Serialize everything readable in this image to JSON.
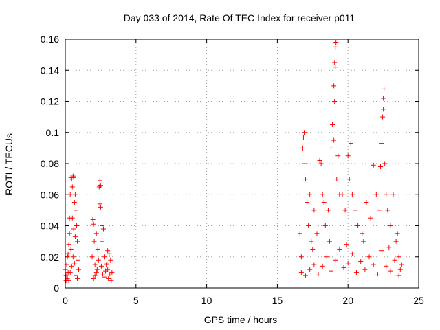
{
  "chart_data": {
    "type": "scatter",
    "title": "Day 033 of 2014, Rate Of TEC Index for receiver p011",
    "xlabel": "GPS time / hours",
    "ylabel": "ROTI / TECUs",
    "xlim": [
      0,
      25
    ],
    "ylim": [
      0,
      0.16
    ],
    "xticks": [
      0,
      5,
      10,
      15,
      20,
      25
    ],
    "xtick_labels": [
      "0",
      "5",
      "10",
      "15",
      "20",
      "25"
    ],
    "yticks": [
      0,
      0.02,
      0.04,
      0.06,
      0.08,
      0.1,
      0.12,
      0.14,
      0.16
    ],
    "ytick_labels": [
      "0",
      "0.02",
      "0.04",
      "0.06",
      "0.08",
      "0.1",
      "0.12",
      "0.14",
      "0.16"
    ],
    "grid": true,
    "marker": "+",
    "marker_color": "#ff0000",
    "series": [
      {
        "points": [
          [
            0.0,
            0.012
          ],
          [
            0.05,
            0.008
          ],
          [
            0.1,
            0.015
          ],
          [
            0.15,
            0.02
          ],
          [
            0.2,
            0.01
          ],
          [
            0.25,
            0.028
          ],
          [
            0.3,
            0.045
          ],
          [
            0.35,
            0.06
          ],
          [
            0.4,
            0.071
          ],
          [
            0.45,
            0.07
          ],
          [
            0.5,
            0.065
          ],
          [
            0.55,
            0.072
          ],
          [
            0.6,
            0.071
          ],
          [
            0.65,
            0.055
          ],
          [
            0.7,
            0.06
          ],
          [
            0.75,
            0.05
          ],
          [
            0.8,
            0.04
          ],
          [
            0.85,
            0.03
          ],
          [
            0.9,
            0.018
          ],
          [
            0.95,
            0.012
          ],
          [
            0.05,
            0.005
          ],
          [
            0.15,
            0.006
          ],
          [
            0.25,
            0.005
          ],
          [
            0.35,
            0.01
          ],
          [
            0.45,
            0.014
          ],
          [
            0.55,
            0.02
          ],
          [
            0.65,
            0.016
          ],
          [
            0.75,
            0.008
          ],
          [
            0.85,
            0.006
          ],
          [
            0.3,
            0.035
          ],
          [
            0.5,
            0.045
          ],
          [
            0.7,
            0.033
          ],
          [
            0.4,
            0.025
          ],
          [
            0.6,
            0.038
          ],
          [
            0.2,
            0.022
          ],
          [
            1.9,
            0.02
          ],
          [
            1.95,
            0.044
          ],
          [
            2.0,
            0.041
          ],
          [
            2.05,
            0.03
          ],
          [
            2.1,
            0.015
          ],
          [
            2.2,
            0.01
          ],
          [
            2.3,
            0.025
          ],
          [
            2.4,
            0.065
          ],
          [
            2.45,
            0.069
          ],
          [
            2.5,
            0.066
          ],
          [
            2.45,
            0.054
          ],
          [
            2.5,
            0.052
          ],
          [
            2.6,
            0.03
          ],
          [
            2.7,
            0.038
          ],
          [
            2.8,
            0.02
          ],
          [
            2.9,
            0.015
          ],
          [
            3.0,
            0.012
          ],
          [
            3.1,
            0.022
          ],
          [
            3.2,
            0.018
          ],
          [
            3.3,
            0.01
          ],
          [
            2.0,
            0.006
          ],
          [
            2.1,
            0.008
          ],
          [
            2.25,
            0.012
          ],
          [
            2.35,
            0.018
          ],
          [
            2.55,
            0.014
          ],
          [
            2.65,
            0.009
          ],
          [
            2.75,
            0.007
          ],
          [
            2.85,
            0.011
          ],
          [
            2.95,
            0.016
          ],
          [
            3.05,
            0.006
          ],
          [
            3.15,
            0.009
          ],
          [
            3.25,
            0.005
          ],
          [
            2.2,
            0.035
          ],
          [
            2.6,
            0.04
          ],
          [
            3.0,
            0.024
          ],
          [
            16.6,
            0.035
          ],
          [
            16.7,
            0.02
          ],
          [
            16.8,
            0.09
          ],
          [
            16.85,
            0.097
          ],
          [
            16.9,
            0.1
          ],
          [
            16.95,
            0.08
          ],
          [
            17.0,
            0.07
          ],
          [
            17.1,
            0.055
          ],
          [
            17.2,
            0.04
          ],
          [
            17.3,
            0.06
          ],
          [
            17.4,
            0.03
          ],
          [
            17.6,
            0.05
          ],
          [
            17.8,
            0.035
          ],
          [
            18.0,
            0.082
          ],
          [
            18.1,
            0.08
          ],
          [
            18.2,
            0.06
          ],
          [
            18.3,
            0.055
          ],
          [
            18.4,
            0.04
          ],
          [
            18.6,
            0.05
          ],
          [
            18.8,
            0.09
          ],
          [
            18.9,
            0.105
          ],
          [
            19.0,
            0.13
          ],
          [
            19.05,
            0.145
          ],
          [
            19.1,
            0.155
          ],
          [
            19.15,
            0.158
          ],
          [
            19.1,
            0.142
          ],
          [
            19.05,
            0.12
          ],
          [
            19.0,
            0.095
          ],
          [
            19.2,
            0.07
          ],
          [
            19.3,
            0.085
          ],
          [
            19.4,
            0.06
          ],
          [
            19.6,
            0.06
          ],
          [
            19.8,
            0.05
          ],
          [
            20.0,
            0.085
          ],
          [
            20.1,
            0.07
          ],
          [
            20.2,
            0.093
          ],
          [
            20.3,
            0.06
          ],
          [
            20.5,
            0.05
          ],
          [
            20.7,
            0.04
          ],
          [
            21.0,
            0.035
          ],
          [
            21.3,
            0.055
          ],
          [
            21.6,
            0.045
          ],
          [
            21.8,
            0.079
          ],
          [
            22.0,
            0.06
          ],
          [
            22.2,
            0.05
          ],
          [
            22.3,
            0.078
          ],
          [
            22.4,
            0.093
          ],
          [
            22.45,
            0.11
          ],
          [
            22.5,
            0.122
          ],
          [
            22.55,
            0.128
          ],
          [
            22.5,
            0.115
          ],
          [
            22.6,
            0.08
          ],
          [
            22.7,
            0.06
          ],
          [
            22.8,
            0.05
          ],
          [
            23.0,
            0.04
          ],
          [
            23.2,
            0.06
          ],
          [
            23.4,
            0.03
          ],
          [
            23.6,
            0.02
          ],
          [
            23.8,
            0.015
          ],
          [
            23.5,
            0.035
          ],
          [
            16.7,
            0.01
          ],
          [
            17.0,
            0.008
          ],
          [
            17.3,
            0.012
          ],
          [
            17.6,
            0.015
          ],
          [
            17.9,
            0.009
          ],
          [
            18.2,
            0.014
          ],
          [
            18.5,
            0.02
          ],
          [
            18.8,
            0.011
          ],
          [
            19.1,
            0.018
          ],
          [
            19.4,
            0.025
          ],
          [
            19.7,
            0.013
          ],
          [
            20.0,
            0.016
          ],
          [
            20.3,
            0.022
          ],
          [
            20.6,
            0.01
          ],
          [
            20.9,
            0.017
          ],
          [
            21.2,
            0.012
          ],
          [
            21.5,
            0.02
          ],
          [
            21.8,
            0.015
          ],
          [
            22.1,
            0.009
          ],
          [
            22.4,
            0.024
          ],
          [
            22.7,
            0.014
          ],
          [
            23.0,
            0.011
          ],
          [
            23.3,
            0.018
          ],
          [
            23.6,
            0.008
          ],
          [
            17.5,
            0.025
          ],
          [
            18.7,
            0.03
          ],
          [
            19.9,
            0.028
          ],
          [
            21.1,
            0.03
          ],
          [
            22.9,
            0.026
          ],
          [
            23.7,
            0.012
          ]
        ]
      }
    ]
  }
}
